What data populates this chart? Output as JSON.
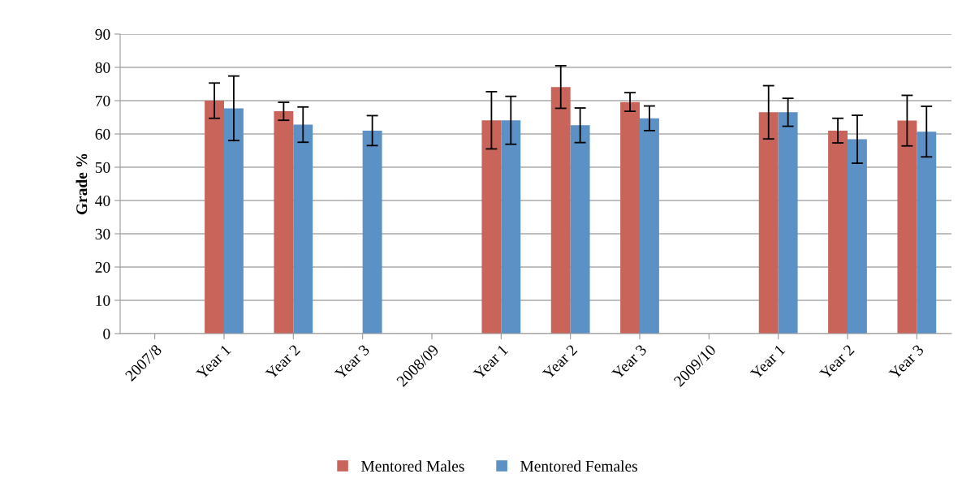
{
  "chart_data": {
    "type": "bar",
    "ylabel": "Grade %",
    "categories": [
      "2007/8",
      "Year 1",
      "Year 2",
      "Year 3",
      "2008/09",
      "Year 1",
      "Year 2",
      "Year 3",
      "2009/10",
      "Year 1",
      "Year 2",
      "Year 3"
    ],
    "series": [
      {
        "name": "Mentored Males",
        "color": "#c9645a",
        "values": [
          null,
          70,
          66.8,
          0,
          null,
          64.1,
          74.1,
          69.6,
          null,
          66.5,
          61,
          64
        ],
        "errors": [
          null,
          5.3,
          2.7,
          null,
          null,
          8.6,
          6.4,
          2.8,
          null,
          8,
          3.7,
          7.6
        ]
      },
      {
        "name": "Mentored Females",
        "color": "#5b91c5",
        "values": [
          null,
          67.7,
          62.8,
          61,
          null,
          64.1,
          62.6,
          64.7,
          null,
          66.5,
          58.4,
          60.7
        ],
        "errors": [
          null,
          9.7,
          5.3,
          4.5,
          null,
          7.2,
          5.2,
          3.7,
          null,
          4.2,
          7.2,
          7.6
        ]
      }
    ],
    "ylim": [
      0,
      90
    ],
    "yticks": [
      0,
      10,
      20,
      30,
      40,
      50,
      60,
      70,
      80,
      90
    ],
    "grid": "y",
    "legend": "bottom"
  }
}
